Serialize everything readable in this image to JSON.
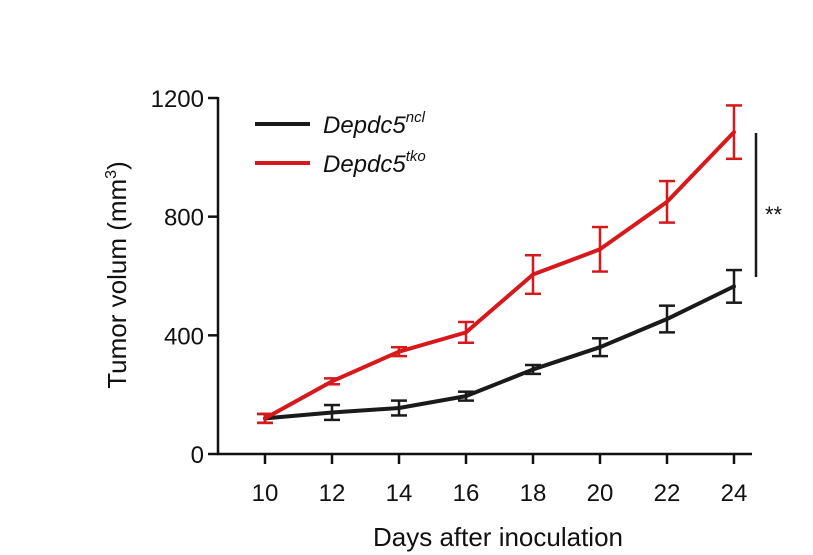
{
  "chart_data": {
    "type": "line",
    "x": [
      10,
      12,
      14,
      16,
      18,
      20,
      22,
      24
    ],
    "xlabel": "Days after inoculation",
    "ylabel_main": "Tumor volum (mm",
    "ylabel_sup": "3",
    "ylabel_close": ")",
    "xlim": [
      9,
      25
    ],
    "ylim": [
      0,
      1200
    ],
    "xticks": [
      10,
      12,
      14,
      16,
      18,
      20,
      22,
      24
    ],
    "yticks": [
      0,
      400,
      800,
      1200
    ],
    "grid": false,
    "legend_position": "top-left",
    "series": [
      {
        "name_base": "Depdc5",
        "name_sup": "ncl",
        "color": "#1a1a1a",
        "values": [
          120,
          140,
          155,
          195,
          285,
          360,
          455,
          565
        ],
        "errors": [
          15,
          25,
          25,
          15,
          15,
          30,
          45,
          55
        ]
      },
      {
        "name_base": "Depdc5",
        "name_sup": "tko",
        "color": "#d7191c",
        "values": [
          120,
          245,
          345,
          410,
          605,
          690,
          850,
          1085
        ],
        "errors": [
          15,
          10,
          15,
          35,
          65,
          75,
          70,
          90
        ]
      }
    ],
    "significance": {
      "label": "**",
      "color": "#1a1a1a"
    }
  }
}
